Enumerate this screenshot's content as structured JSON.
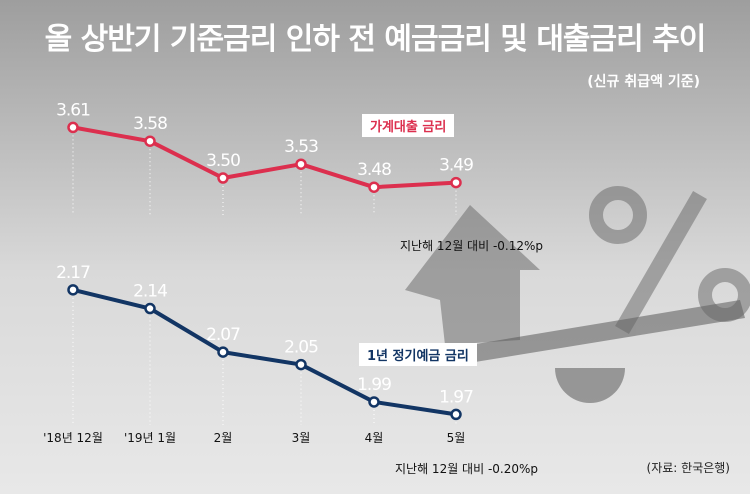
{
  "title": "올 상반기 기준금리 인하 전 예금금리 및 대출금리 추이",
  "subtitle": "(신규 취급액 기준)",
  "source": "(자료: 한국은행)",
  "colors": {
    "loan": "#dc2f4e",
    "deposit": "#123564",
    "text_light": "#ffffff"
  },
  "decor_icons": [
    "house-arrow-icon",
    "percent-icon",
    "scale-icon"
  ],
  "chart_data": [
    {
      "type": "line",
      "title": "",
      "x": [
        "'18년 12월",
        "'19년 1월",
        "2월",
        "3월",
        "4월",
        "5월"
      ],
      "series": [
        {
          "name": "가계대출 금리",
          "values": [
            3.61,
            3.58,
            3.5,
            3.53,
            3.48,
            3.49
          ]
        }
      ],
      "labels": [
        "3.61",
        "3.58",
        "3.50",
        "3.53",
        "3.48",
        "3.49"
      ],
      "note": "지난해 12월 대비 -0.12%p",
      "ylim": [
        3.4,
        3.7
      ]
    },
    {
      "type": "line",
      "title": "",
      "x": [
        "'18년 12월",
        "'19년 1월",
        "2월",
        "3월",
        "4월",
        "5월"
      ],
      "series": [
        {
          "name": "1년 정기예금 금리",
          "values": [
            2.17,
            2.14,
            2.07,
            2.05,
            1.99,
            1.97
          ]
        }
      ],
      "labels": [
        "2.17",
        "2.14",
        "2.07",
        "2.05",
        "1.99",
        "1.97"
      ],
      "note": "지난해 12월 대비 -0.20%p",
      "ylim": [
        1.9,
        2.25
      ]
    }
  ]
}
